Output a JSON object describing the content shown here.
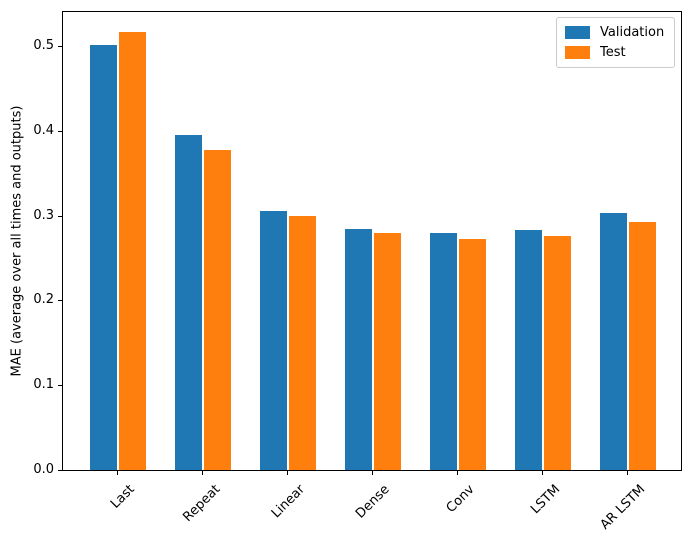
{
  "figure": {
    "background": "#ffffff"
  },
  "chart_data": {
    "type": "bar",
    "categories": [
      "Last",
      "Repeat",
      "Linear",
      "Dense",
      "Conv",
      "LSTM",
      "AR LSTM"
    ],
    "series": [
      {
        "name": "Validation",
        "color": "#1f77b4",
        "values": [
          0.501,
          0.395,
          0.305,
          0.284,
          0.28,
          0.283,
          0.303
        ]
      },
      {
        "name": "Test",
        "color": "#ff7f0e",
        "values": [
          0.516,
          0.377,
          0.299,
          0.279,
          0.272,
          0.276,
          0.292
        ]
      }
    ],
    "title": "",
    "xlabel": "",
    "ylabel": "MAE (average over all times and outputs)",
    "ylim": [
      0,
      0.54
    ],
    "yticks": [
      0.0,
      0.1,
      0.2,
      0.3,
      0.4,
      0.5
    ],
    "ytick_labels": [
      "0.0",
      "0.1",
      "0.2",
      "0.3",
      "0.4",
      "0.5"
    ],
    "legend": {
      "position": "upper right"
    },
    "grid": false,
    "spine_color": "#000000",
    "text_color": "#000000"
  }
}
